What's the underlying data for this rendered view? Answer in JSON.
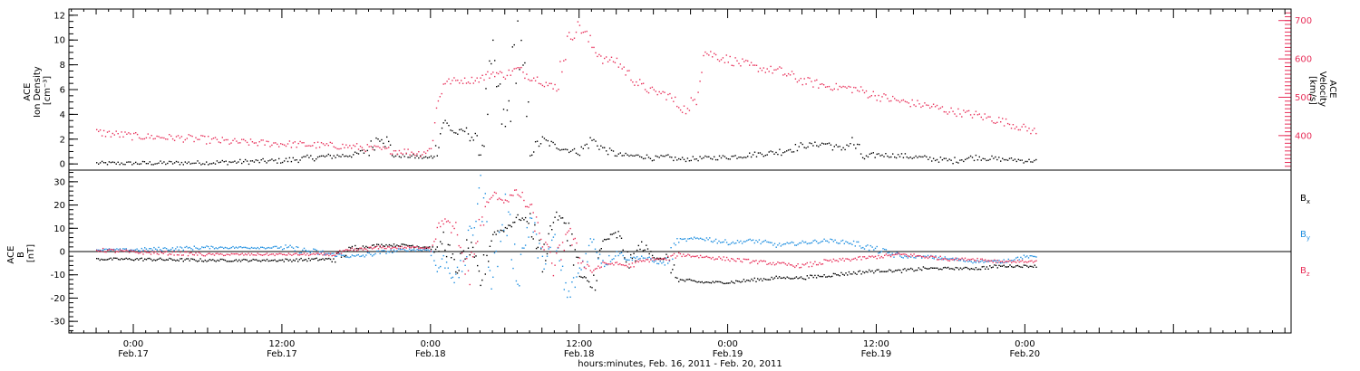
{
  "colors": {
    "black": "#000000",
    "red": "#e8305a",
    "blue": "#1f8fe0"
  },
  "xaxis": {
    "title": "hours:minutes, Feb. 16, 2011 - Feb. 20, 2011",
    "range_hours": [
      -5.2,
      93.5
    ],
    "ticks": [
      {
        "h": 0,
        "time": "0:00",
        "date": "Feb.17"
      },
      {
        "h": 12,
        "time": "12:00",
        "date": "Feb.17"
      },
      {
        "h": 24,
        "time": "0:00",
        "date": "Feb.18"
      },
      {
        "h": 36,
        "time": "12:00",
        "date": "Feb.18"
      },
      {
        "h": 48,
        "time": "0:00",
        "date": "Feb.19"
      },
      {
        "h": 60,
        "time": "12:00",
        "date": "Feb.19"
      },
      {
        "h": 72,
        "time": "0:00",
        "date": "Feb.20"
      }
    ]
  },
  "top_panel": {
    "left_label": [
      "ACE",
      "Ion Density",
      "[cm⁻³]"
    ],
    "right_label": [
      "ACE",
      "Velocity",
      "[km/s]"
    ],
    "left_ticks": [
      "0",
      "2",
      "4",
      "6",
      "8",
      "10",
      "12"
    ],
    "right_ticks": [
      "400",
      "500",
      "600",
      "700"
    ]
  },
  "bottom_panel": {
    "left_label": [
      "ACE",
      "B",
      "[nT]"
    ],
    "left_ticks": [
      "-30",
      "-20",
      "-10",
      "0",
      "10",
      "20",
      "30"
    ],
    "legend": [
      {
        "sym": "B",
        "sub": "x",
        "color": "#000000"
      },
      {
        "sym": "B",
        "sub": "y",
        "color": "#1f8fe0"
      },
      {
        "sym": "B",
        "sub": "z",
        "color": "#e8305a"
      }
    ]
  },
  "chart_data": [
    {
      "type": "scatter",
      "title": "",
      "xlabel": "hours:minutes, Feb. 16, 2011 - Feb. 20, 2011",
      "xlim_hours_from_Feb17_0000": [
        -5.2,
        93.5
      ],
      "grid": false,
      "series": [
        {
          "name": "Ion Density",
          "axis": "left",
          "ylabel": "ACE Ion Density [cm⁻³]",
          "ylim": [
            -0.5,
            12.5
          ],
          "color": "#000000",
          "x": [
            -3,
            0,
            6,
            12,
            15,
            18,
            19,
            20,
            21,
            22,
            23,
            24,
            24.5,
            25,
            26,
            27,
            28,
            29,
            30,
            31,
            32,
            33,
            34,
            35,
            36,
            37,
            38,
            39,
            40,
            41,
            42,
            43,
            44,
            46,
            48,
            50,
            52,
            54,
            56,
            57,
            58,
            59,
            60,
            62,
            64,
            66,
            68,
            70,
            71,
            72,
            73
          ],
          "y": [
            0.1,
            0.1,
            0.15,
            0.3,
            0.6,
            0.8,
            1.2,
            2.6,
            0.7,
            0.7,
            0.6,
            0.5,
            1.5,
            3.5,
            2.5,
            2.8,
            1.2,
            8.0,
            2.5,
            10.5,
            1.0,
            2.0,
            1.5,
            1.2,
            1.0,
            2.0,
            1.2,
            0.8,
            0.7,
            0.7,
            0.5,
            0.6,
            0.4,
            0.5,
            0.6,
            0.8,
            1.0,
            1.5,
            1.7,
            1.2,
            1.8,
            0.5,
            0.8,
            0.7,
            0.5,
            0.3,
            0.6,
            0.4,
            0.4,
            0.3,
            0.3
          ]
        },
        {
          "name": "Velocity",
          "axis": "right",
          "ylabel": "ACE Velocity [km/s]",
          "ylim": [
            310,
            730
          ],
          "color": "#e8305a",
          "x": [
            -3,
            0,
            4,
            8,
            12,
            16,
            18,
            20,
            22,
            23,
            24,
            24.3,
            25,
            26,
            27,
            28,
            29,
            30,
            31,
            32,
            33,
            34,
            35,
            36,
            37,
            38,
            39,
            40,
            41,
            42,
            43,
            44,
            45,
            46,
            48,
            50,
            52,
            54,
            56,
            58,
            60,
            62,
            64,
            66,
            68,
            70,
            71,
            72,
            73
          ],
          "y": [
            410,
            400,
            395,
            385,
            380,
            375,
            372,
            365,
            360,
            355,
            365,
            450,
            540,
            545,
            545,
            550,
            565,
            560,
            575,
            555,
            545,
            520,
            650,
            690,
            635,
            600,
            595,
            560,
            530,
            515,
            510,
            480,
            460,
            620,
            600,
            580,
            570,
            545,
            530,
            525,
            505,
            490,
            480,
            465,
            455,
            440,
            430,
            420,
            410
          ]
        }
      ]
    },
    {
      "type": "scatter",
      "title": "",
      "xlabel": "hours:minutes, Feb. 16, 2011 - Feb. 20, 2011",
      "ylabel": "ACE B [nT]",
      "ylim": [
        -35,
        35
      ],
      "xlim_hours_from_Feb17_0000": [
        -5.2,
        93.5
      ],
      "grid": false,
      "series": [
        {
          "name": "Bx",
          "color": "#000000",
          "x": [
            -3,
            0,
            6,
            12,
            16,
            18,
            19,
            20,
            22,
            24,
            24.5,
            25,
            26,
            27,
            28,
            29,
            30,
            31,
            32,
            33,
            34,
            35,
            36,
            37,
            38,
            39,
            40,
            41,
            42,
            43,
            44,
            46,
            48,
            50,
            52,
            54,
            56,
            58,
            60,
            62,
            64,
            66,
            68,
            70,
            71,
            72,
            73
          ],
          "y": [
            -3,
            -3,
            -3.5,
            -3.5,
            -3,
            2,
            2.5,
            3,
            3,
            2,
            0,
            6,
            -8,
            3,
            -12,
            8,
            10,
            15,
            13,
            -3,
            16,
            12,
            -10,
            -15,
            5,
            8,
            -5,
            3,
            -2,
            -3,
            -12,
            -13,
            -13,
            -12,
            -11,
            -11,
            -10,
            -9,
            -8,
            -8,
            -7,
            -7,
            -7,
            -6,
            -6,
            -6,
            -6
          ]
        },
        {
          "name": "By",
          "color": "#1f8fe0",
          "x": [
            -3,
            0,
            6,
            12,
            16,
            18,
            20,
            22,
            24,
            24.5,
            25,
            26,
            27,
            28,
            29,
            30,
            31,
            32,
            33,
            34,
            35,
            36,
            37,
            38,
            39,
            40,
            41,
            42,
            43,
            44,
            46,
            48,
            50,
            52,
            54,
            56,
            58,
            60,
            62,
            64,
            66,
            68,
            70,
            71,
            72,
            73
          ],
          "y": [
            1,
            1,
            2,
            2,
            -1,
            -2,
            0,
            1,
            1,
            -8,
            -3,
            -12,
            0,
            30,
            -10,
            18,
            -10,
            15,
            -5,
            5,
            -20,
            -8,
            5,
            -5,
            0,
            -3,
            -2,
            -4,
            -5,
            5,
            6,
            4,
            5,
            3,
            4,
            5,
            4,
            1,
            -2,
            -2,
            -3,
            -4,
            -4,
            -3,
            -2,
            -2
          ]
        },
        {
          "name": "Bz",
          "color": "#e8305a",
          "x": [
            -3,
            0,
            6,
            12,
            16,
            18,
            20,
            22,
            24,
            24.5,
            25,
            26,
            27,
            28,
            29,
            30,
            31,
            32,
            33,
            34,
            35,
            36,
            37,
            38,
            39,
            40,
            41,
            42,
            43,
            44,
            46,
            48,
            50,
            52,
            54,
            56,
            58,
            60,
            62,
            64,
            66,
            68,
            70,
            71,
            72,
            73
          ],
          "y": [
            1,
            0,
            -1,
            -1,
            -1,
            1,
            2,
            2,
            2,
            10,
            14,
            8,
            -10,
            12,
            25,
            22,
            26,
            18,
            5,
            -8,
            10,
            -3,
            -8,
            -5,
            -5,
            -6,
            -4,
            -3,
            -3,
            -1,
            -2,
            -3,
            -4,
            -5,
            -6,
            -4,
            -3,
            -2,
            -1,
            -2,
            -3,
            -3,
            -4,
            -4,
            -4,
            -4
          ]
        }
      ]
    }
  ]
}
